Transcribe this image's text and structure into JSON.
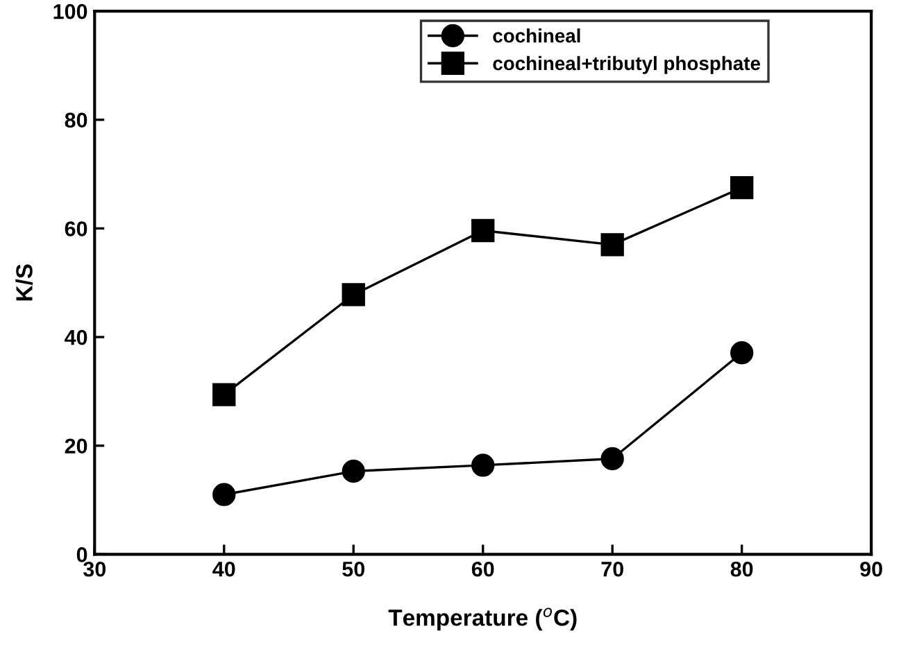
{
  "chart_data": {
    "type": "line",
    "xlabel": "Temperature ($^{o}$C)",
    "ylabel": "K/S",
    "x": [
      40,
      50,
      60,
      70,
      80
    ],
    "series": [
      {
        "name": "cochineal",
        "color": "#000000",
        "marker": "circle",
        "values": [
          11.0,
          15.3,
          16.4,
          17.6,
          37.1
        ]
      },
      {
        "name": "cochineal+tributyl phosphate",
        "color": "#000000",
        "marker": "square",
        "values": [
          29.4,
          47.8,
          59.6,
          57.0,
          67.5
        ]
      }
    ],
    "xlim": [
      30,
      90
    ],
    "xticks": [
      30,
      40,
      50,
      60,
      70,
      80,
      90
    ],
    "ylim": [
      0,
      100
    ],
    "yticks": [
      0,
      20,
      40,
      60,
      80,
      100
    ],
    "grid": false,
    "legend": "top right",
    "line_style": "solid"
  }
}
